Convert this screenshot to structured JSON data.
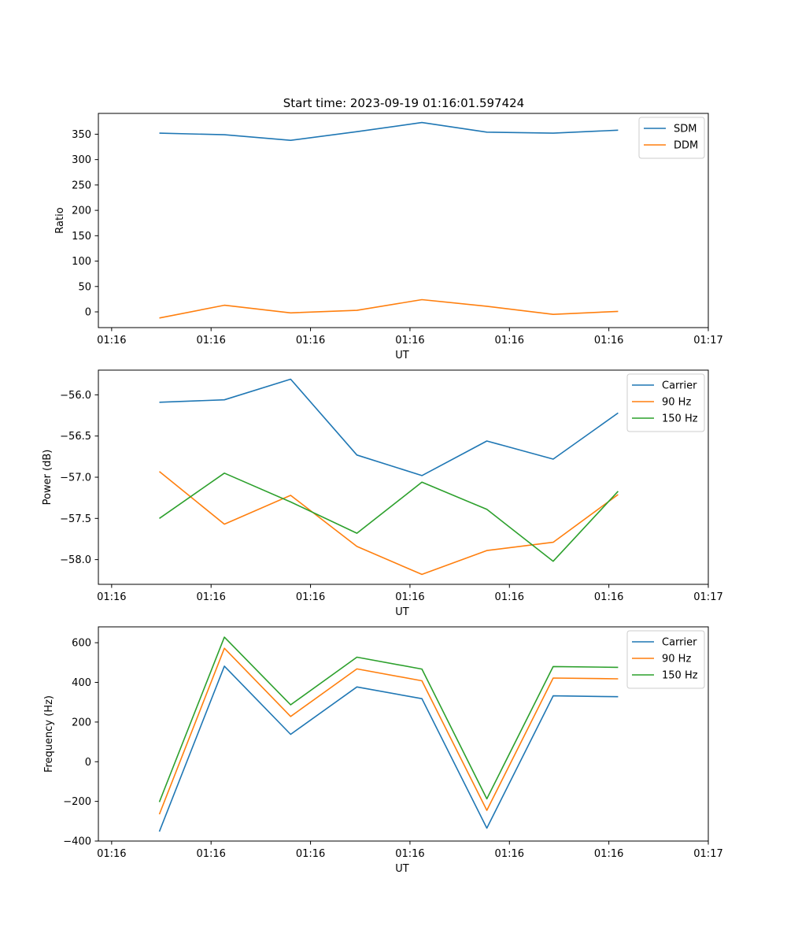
{
  "figure_title": "Start time: 2023-09-19 01:16:01.597424",
  "colors": {
    "blue": "#1f77b4",
    "orange": "#ff7f0e",
    "green": "#2ca02c"
  },
  "chart_data": [
    {
      "type": "line",
      "title": "Start time: 2023-09-19 01:16:01.597424",
      "xlabel": "UT",
      "ylabel": "Ratio",
      "xlim": [
        -0.2,
        9.0
      ],
      "ylim": [
        -31,
        391
      ],
      "x_ticks": [
        0,
        1.5,
        3,
        4.5,
        6,
        7.5,
        9
      ],
      "x_tick_labels": [
        "01:16",
        "01:16",
        "01:16",
        "01:16",
        "01:16",
        "01:16",
        "01:17"
      ],
      "y_ticks": [
        0,
        50,
        100,
        150,
        200,
        250,
        300,
        350
      ],
      "y_tick_labels": [
        "0",
        "50",
        "100",
        "150",
        "200",
        "250",
        "300",
        "350"
      ],
      "legend_position": "upper-right",
      "x": [
        0.72,
        1.7,
        2.7,
        3.7,
        4.68,
        5.66,
        6.66,
        7.64
      ],
      "series": [
        {
          "name": "SDM",
          "color": "#1f77b4",
          "values": [
            352,
            349,
            338,
            355,
            373,
            354,
            352,
            358
          ]
        },
        {
          "name": "DDM",
          "color": "#ff7f0e",
          "values": [
            -12,
            13,
            -2,
            3,
            24,
            11,
            -5,
            1
          ]
        }
      ]
    },
    {
      "type": "line",
      "title": "",
      "xlabel": "UT",
      "ylabel": "Power (dB)",
      "xlim": [
        -0.2,
        9.0
      ],
      "ylim": [
        -58.3,
        -55.7
      ],
      "x_ticks": [
        0,
        1.5,
        3,
        4.5,
        6,
        7.5,
        9
      ],
      "x_tick_labels": [
        "01:16",
        "01:16",
        "01:16",
        "01:16",
        "01:16",
        "01:16",
        "01:17"
      ],
      "y_ticks": [
        -58.0,
        -57.5,
        -57.0,
        -56.5,
        -56.0
      ],
      "y_tick_labels": [
        "−58.0",
        "−57.5",
        "−57.0",
        "−56.5",
        "−56.0"
      ],
      "legend_position": "upper-right",
      "x": [
        0.72,
        1.7,
        2.7,
        3.7,
        4.68,
        5.66,
        6.66,
        7.64
      ],
      "series": [
        {
          "name": "Carrier",
          "color": "#1f77b4",
          "values": [
            -56.09,
            -56.06,
            -55.81,
            -56.73,
            -56.98,
            -56.56,
            -56.78,
            -56.22
          ]
        },
        {
          "name": "90 Hz",
          "color": "#ff7f0e",
          "values": [
            -56.93,
            -57.57,
            -57.22,
            -57.84,
            -58.18,
            -57.89,
            -57.79,
            -57.21
          ]
        },
        {
          "name": "150 Hz",
          "color": "#2ca02c",
          "values": [
            -57.5,
            -56.95,
            -57.3,
            -57.68,
            -57.06,
            -57.39,
            -58.02,
            -57.17
          ]
        }
      ]
    },
    {
      "type": "line",
      "title": "",
      "xlabel": "UT",
      "ylabel": "Frequency (Hz)",
      "xlim": [
        -0.2,
        9.0
      ],
      "ylim": [
        -400,
        680
      ],
      "x_ticks": [
        0,
        1.5,
        3,
        4.5,
        6,
        7.5,
        9
      ],
      "x_tick_labels": [
        "01:16",
        "01:16",
        "01:16",
        "01:16",
        "01:16",
        "01:16",
        "01:17"
      ],
      "y_ticks": [
        -400,
        -200,
        0,
        200,
        400,
        600
      ],
      "y_tick_labels": [
        "−400",
        "−200",
        "0",
        "200",
        "400",
        "600"
      ],
      "legend_position": "upper-right",
      "x": [
        0.72,
        1.7,
        2.7,
        3.7,
        4.68,
        5.66,
        6.66,
        7.64
      ],
      "series": [
        {
          "name": "Carrier",
          "color": "#1f77b4",
          "values": [
            -352,
            482,
            138,
            377,
            318,
            -335,
            332,
            328
          ]
        },
        {
          "name": "90 Hz",
          "color": "#ff7f0e",
          "values": [
            -265,
            572,
            228,
            468,
            408,
            -245,
            422,
            418
          ]
        },
        {
          "name": "150 Hz",
          "color": "#2ca02c",
          "values": [
            -203,
            628,
            287,
            527,
            467,
            -187,
            480,
            476
          ]
        }
      ]
    }
  ]
}
